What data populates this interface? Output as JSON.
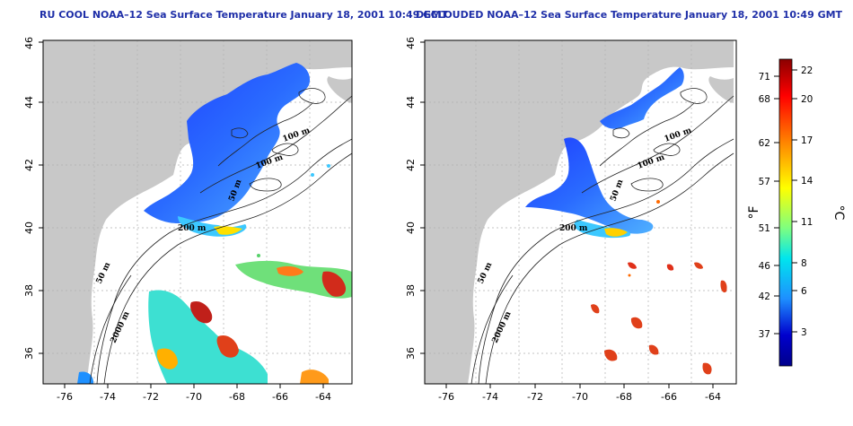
{
  "panels": [
    {
      "title": "RU COOL NOAA–12 Sea Surface Temperature January 18, 2001 10:49 GMT",
      "contour_labels": [
        "100 m",
        "100 m",
        "50 m",
        "200 m",
        "50 m",
        "2000 m"
      ]
    },
    {
      "title": "DECLOUDED NOAA–12 Sea Surface Temperature January 18, 2001 10:49 GMT",
      "contour_labels": [
        "100 m",
        "100 m",
        "50 m",
        "200 m",
        "50 m",
        "2000 m"
      ]
    }
  ],
  "axes": {
    "x_ticks": [
      "-76",
      "-74",
      "-72",
      "-70",
      "-68",
      "-66",
      "-64"
    ],
    "y_ticks": [
      "36",
      "38",
      "40",
      "42",
      "44",
      "46"
    ]
  },
  "colorbar": {
    "fahrenheit_ticks": [
      "71",
      "68",
      "62",
      "57",
      "51",
      "46",
      "42",
      "37"
    ],
    "celsius_ticks": [
      "22",
      "20",
      "17",
      "14",
      "11",
      "8",
      "6",
      "3"
    ],
    "f_label": "°F",
    "c_label": "°C",
    "colors": [
      "#8b0000",
      "#ff0000",
      "#ff8c00",
      "#ffff00",
      "#00e5ee",
      "#1e90ff",
      "#0000cd",
      "#00008b"
    ]
  },
  "colors": {
    "land": "#c8c8c8",
    "title": "#1f2fa8",
    "grid": "#b0b0b0"
  }
}
